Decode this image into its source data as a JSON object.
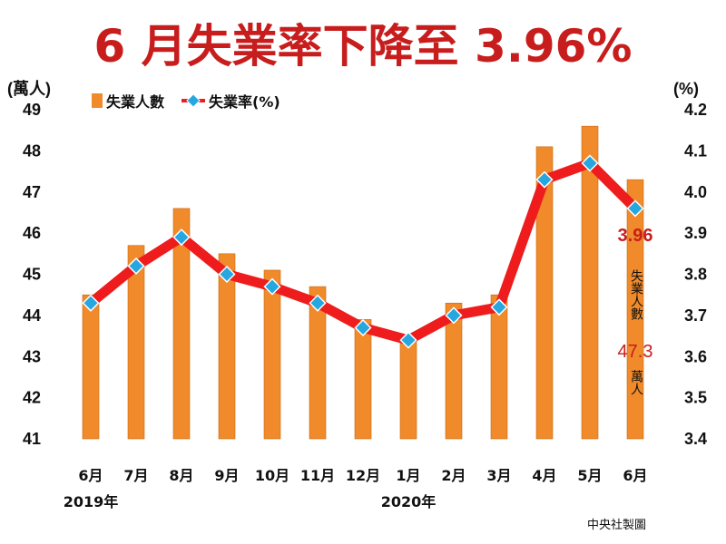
{
  "title": "6 月失業率下降至 3.96%",
  "colors": {
    "title": "#c81d1d",
    "bar": "#f08a2a",
    "bar_edge": "#c96a12",
    "line": "#ee1c1c",
    "marker": "#26a7e0",
    "annotation": "#c81d1d"
  },
  "chart_data": {
    "type": "bar",
    "categories": [
      "6月",
      "7月",
      "8月",
      "9月",
      "10月",
      "11月",
      "12月",
      "1月",
      "2月",
      "3月",
      "4月",
      "5月",
      "6月"
    ],
    "year_labels": [
      {
        "category_index": 0,
        "label": "2019年"
      },
      {
        "category_index": 7,
        "label": "2020年"
      }
    ],
    "series": [
      {
        "name": "失業人數",
        "type": "bar",
        "axis": "left",
        "values": [
          44.5,
          45.7,
          46.6,
          45.5,
          45.1,
          44.7,
          43.9,
          43.5,
          44.3,
          44.5,
          48.1,
          48.6,
          47.3
        ]
      },
      {
        "name": "失業率(%)",
        "type": "line",
        "axis": "right",
        "values": [
          3.73,
          3.82,
          3.89,
          3.8,
          3.77,
          3.73,
          3.67,
          3.64,
          3.7,
          3.72,
          4.03,
          4.07,
          3.96
        ]
      }
    ],
    "y_left": {
      "unit_label": "(萬人)",
      "ylim": [
        41,
        49
      ],
      "ticks": [
        "41",
        "42",
        "43",
        "44",
        "45",
        "46",
        "47",
        "48",
        "49"
      ]
    },
    "y_right": {
      "unit_label": "(%)",
      "ylim": [
        3.4,
        4.2
      ],
      "ticks": [
        "3.4",
        "3.5",
        "3.6",
        "3.7",
        "3.8",
        "3.9",
        "4.0",
        "4.1",
        "4.2"
      ]
    },
    "grid": false,
    "legend_position": "top-left",
    "annotations": {
      "rate_value": "3.96",
      "count_label_top": "失業人數",
      "count_value": "47.3",
      "count_unit": "萬人"
    }
  },
  "credit": "中央社製圖"
}
